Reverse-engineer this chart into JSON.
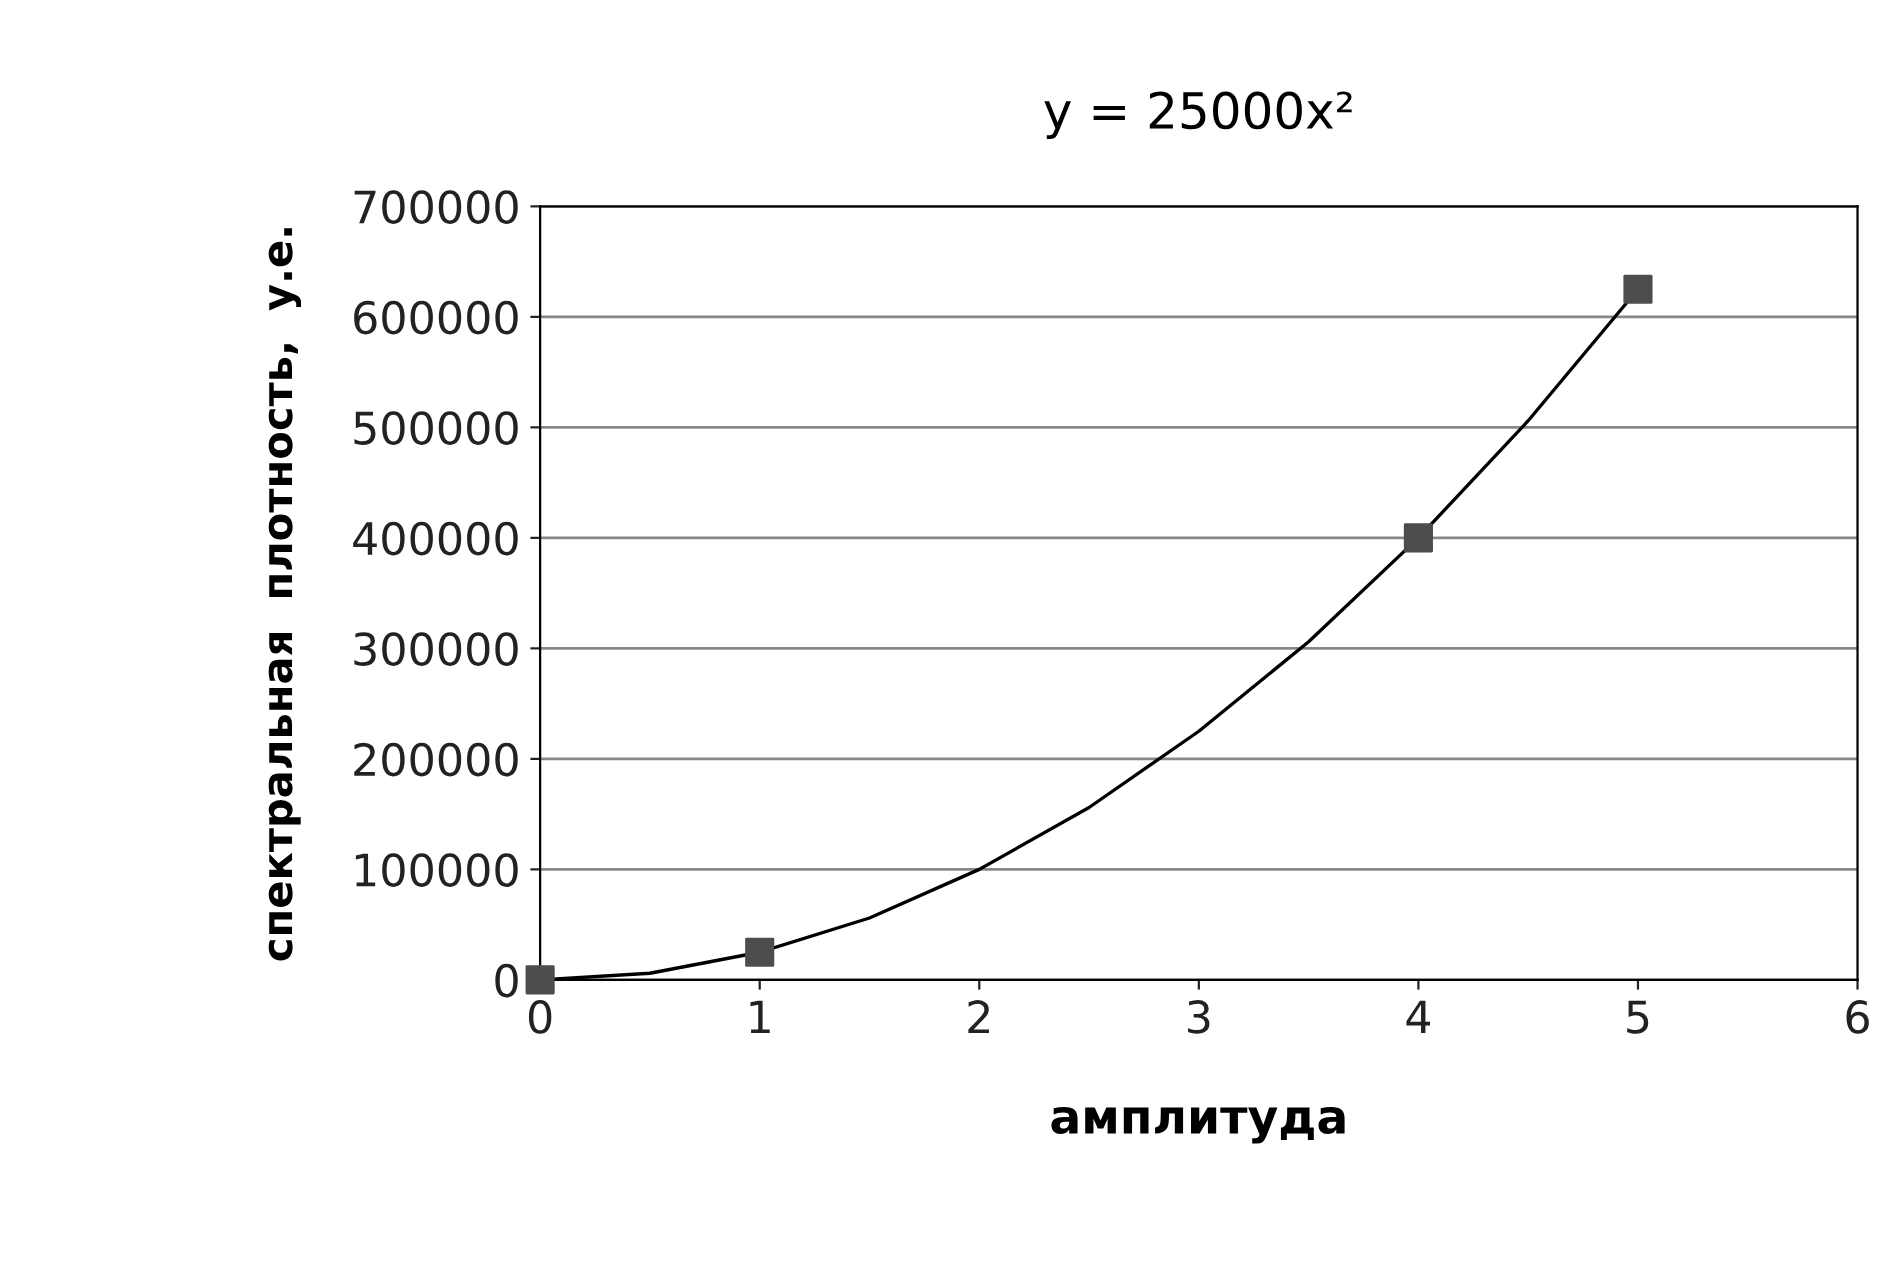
{
  "chart_data": {
    "type": "scatter",
    "title": "y = 25000x²",
    "xlabel": "амплитуда",
    "ylabel": "спектральная  плотность,  у.е.",
    "xlim": [
      0,
      6
    ],
    "xticks": [
      0,
      1,
      2,
      3,
      4,
      5,
      6
    ],
    "ylim": [
      0,
      700000
    ],
    "yticks": [
      0,
      100000,
      200000,
      300000,
      400000,
      500000,
      600000,
      700000
    ],
    "grid": "y",
    "series": [
      {
        "x": [
          0,
          1,
          4,
          5
        ],
        "values": [
          0,
          25000,
          400000,
          625000
        ],
        "color": "#4d4d4d",
        "marker": "square"
      },
      {
        "type": "line",
        "x": [
          0,
          0.5,
          1,
          1.5,
          2,
          2.5,
          3,
          3.5,
          4,
          4.5,
          5
        ],
        "values": [
          0,
          6000,
          25000,
          56000,
          100000,
          156000,
          225000,
          306000,
          400000,
          506000,
          625000
        ],
        "color": "#000000",
        "marker": "none",
        "line_style": "solid"
      }
    ]
  }
}
